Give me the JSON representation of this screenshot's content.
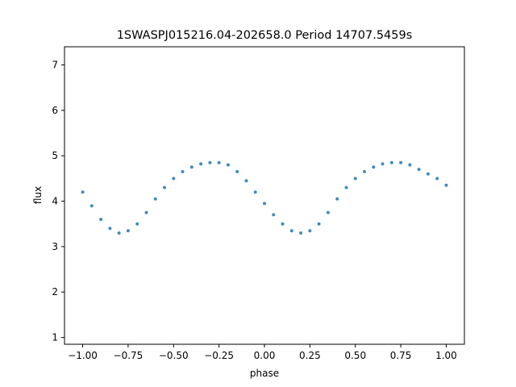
{
  "chart_data": {
    "type": "scatter",
    "title": "1SWASPJ015216.04-202658.0 Period 14707.5459s",
    "xlabel": "phase",
    "ylabel": "flux",
    "xlim": [
      -1.1,
      1.1
    ],
    "ylim": [
      0.85,
      7.4
    ],
    "xticks": [
      -1.0,
      -0.75,
      -0.5,
      -0.25,
      0.0,
      0.25,
      0.5,
      0.75,
      1.0
    ],
    "xtick_labels": [
      "−1.00",
      "−0.75",
      "−0.50",
      "−0.25",
      "0.00",
      "0.25",
      "0.50",
      "0.75",
      "1.00"
    ],
    "yticks": [
      1,
      2,
      3,
      4,
      5,
      6,
      7
    ],
    "ytick_labels": [
      "1",
      "2",
      "3",
      "4",
      "5",
      "6",
      "7"
    ],
    "grid": false,
    "marker_color": "#1f77b4",
    "series": [
      {
        "points": [
          [
            -1.0,
            4.2
          ],
          [
            -0.95,
            3.9
          ],
          [
            -0.9,
            3.6
          ],
          [
            -0.85,
            3.4
          ],
          [
            -0.8,
            3.3
          ],
          [
            -0.75,
            3.35
          ],
          [
            -0.7,
            3.5
          ],
          [
            -0.65,
            3.75
          ],
          [
            -0.6,
            4.05
          ],
          [
            -0.55,
            4.3
          ],
          [
            -0.5,
            4.5
          ],
          [
            -0.45,
            4.65
          ],
          [
            -0.4,
            4.75
          ],
          [
            -0.35,
            4.82
          ],
          [
            -0.3,
            4.85
          ],
          [
            -0.25,
            4.85
          ],
          [
            -0.2,
            4.8
          ],
          [
            -0.15,
            4.65
          ],
          [
            -0.1,
            4.45
          ],
          [
            -0.05,
            4.2
          ],
          [
            0.0,
            3.95
          ],
          [
            0.05,
            3.7
          ],
          [
            0.1,
            3.5
          ],
          [
            0.15,
            3.35
          ],
          [
            0.2,
            3.3
          ],
          [
            0.25,
            3.35
          ],
          [
            0.3,
            3.5
          ],
          [
            0.35,
            3.75
          ],
          [
            0.4,
            4.05
          ],
          [
            0.45,
            4.3
          ],
          [
            0.5,
            4.5
          ],
          [
            0.55,
            4.65
          ],
          [
            0.6,
            4.75
          ],
          [
            0.65,
            4.82
          ],
          [
            0.7,
            4.85
          ],
          [
            0.75,
            4.85
          ],
          [
            0.8,
            4.8
          ],
          [
            0.85,
            4.7
          ],
          [
            0.9,
            4.6
          ],
          [
            0.95,
            4.5
          ],
          [
            1.0,
            4.35
          ]
        ]
      }
    ]
  }
}
